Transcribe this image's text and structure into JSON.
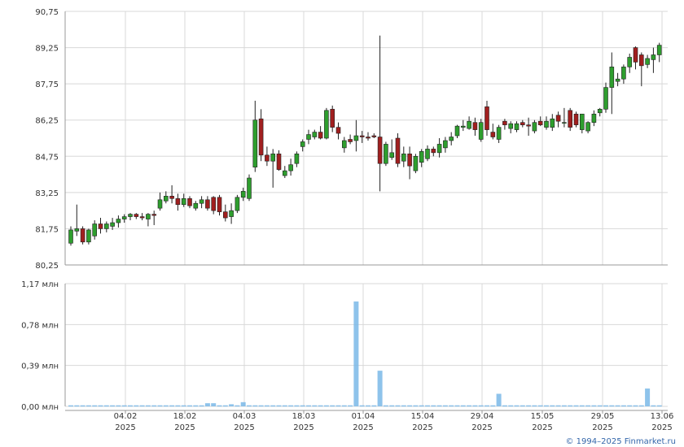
{
  "credit": "© 1994–2025 Finmarket.ru",
  "colors": {
    "up": "#2e9e2e",
    "down": "#a11f1f",
    "volume": "#7ab8e8",
    "grid": "#d8d8d8",
    "axis": "#999999"
  },
  "chart_data": [
    {
      "type": "candlestick",
      "title": "",
      "ylim": [
        80.25,
        90.75
      ],
      "y_ticks": [
        "90,75",
        "89,25",
        "87,75",
        "86,25",
        "84,75",
        "83,25",
        "81,75",
        "80,25"
      ],
      "grid": true,
      "candles": [
        [
          81.15,
          81.85,
          81.05,
          81.7
        ],
        [
          81.65,
          82.75,
          81.45,
          81.75
        ],
        [
          81.75,
          81.85,
          81.1,
          81.2
        ],
        [
          81.2,
          81.75,
          81.1,
          81.7
        ],
        [
          81.45,
          82.1,
          81.3,
          81.95
        ],
        [
          81.95,
          82.2,
          81.55,
          81.75
        ],
        [
          81.75,
          82.05,
          81.6,
          81.95
        ],
        [
          81.85,
          82.2,
          81.7,
          82.0
        ],
        [
          82.0,
          82.3,
          81.8,
          82.15
        ],
        [
          82.15,
          82.35,
          82.0,
          82.25
        ],
        [
          82.25,
          82.4,
          82.1,
          82.35
        ],
        [
          82.35,
          82.4,
          82.15,
          82.25
        ],
        [
          82.25,
          82.4,
          82.1,
          82.2
        ],
        [
          82.15,
          82.4,
          81.85,
          82.35
        ],
        [
          82.35,
          82.5,
          81.9,
          82.3
        ],
        [
          82.6,
          83.25,
          82.5,
          82.95
        ],
        [
          82.9,
          83.3,
          82.8,
          83.1
        ],
        [
          83.1,
          83.55,
          82.8,
          83.0
        ],
        [
          83.0,
          83.2,
          82.5,
          82.75
        ],
        [
          82.75,
          83.2,
          82.65,
          83.0
        ],
        [
          83.0,
          83.1,
          82.6,
          82.7
        ],
        [
          82.6,
          82.9,
          82.5,
          82.8
        ],
        [
          82.8,
          83.1,
          82.6,
          82.95
        ],
        [
          82.95,
          83.1,
          82.5,
          82.6
        ],
        [
          83.05,
          83.1,
          82.35,
          82.5
        ],
        [
          83.05,
          83.15,
          82.3,
          82.45
        ],
        [
          82.45,
          82.75,
          82.05,
          82.2
        ],
        [
          82.25,
          82.8,
          81.95,
          82.5
        ],
        [
          82.5,
          83.15,
          82.4,
          83.05
        ],
        [
          83.05,
          83.45,
          82.9,
          83.3
        ],
        [
          83.0,
          84.0,
          82.9,
          83.85
        ],
        [
          84.3,
          87.05,
          84.1,
          86.25
        ],
        [
          86.3,
          86.7,
          84.55,
          84.8
        ],
        [
          84.8,
          85.15,
          84.35,
          84.55
        ],
        [
          84.55,
          85.05,
          83.45,
          84.85
        ],
        [
          84.85,
          85.0,
          84.15,
          84.2
        ],
        [
          83.95,
          84.35,
          83.85,
          84.15
        ],
        [
          84.15,
          84.65,
          83.95,
          84.4
        ],
        [
          84.45,
          84.95,
          84.3,
          84.85
        ],
        [
          85.15,
          85.45,
          84.95,
          85.35
        ],
        [
          85.45,
          85.85,
          85.25,
          85.65
        ],
        [
          85.55,
          85.85,
          85.45,
          85.75
        ],
        [
          85.75,
          86.0,
          85.45,
          85.5
        ],
        [
          85.5,
          86.75,
          85.45,
          86.65
        ],
        [
          86.7,
          86.85,
          85.75,
          85.95
        ],
        [
          85.95,
          86.15,
          85.45,
          85.7
        ],
        [
          85.1,
          85.55,
          84.9,
          85.4
        ],
        [
          85.45,
          85.65,
          85.25,
          85.35
        ],
        [
          85.4,
          86.25,
          84.95,
          85.6
        ],
        [
          85.6,
          85.8,
          85.3,
          85.55
        ],
        [
          85.55,
          85.75,
          85.4,
          85.5
        ],
        [
          85.6,
          85.7,
          85.5,
          85.55
        ],
        [
          85.55,
          89.75,
          83.3,
          84.45
        ],
        [
          84.45,
          85.35,
          84.35,
          85.25
        ],
        [
          84.7,
          85.45,
          84.6,
          84.9
        ],
        [
          85.5,
          85.7,
          84.3,
          84.45
        ],
        [
          84.55,
          85.15,
          84.3,
          84.85
        ],
        [
          84.85,
          85.15,
          83.8,
          84.35
        ],
        [
          84.15,
          84.85,
          84.05,
          84.75
        ],
        [
          84.5,
          85.05,
          84.3,
          84.95
        ],
        [
          84.65,
          85.2,
          84.55,
          85.05
        ],
        [
          85.05,
          85.15,
          84.75,
          84.9
        ],
        [
          84.9,
          85.5,
          84.7,
          85.25
        ],
        [
          85.1,
          85.55,
          84.9,
          85.4
        ],
        [
          85.4,
          85.75,
          85.2,
          85.55
        ],
        [
          85.6,
          86.05,
          85.5,
          86.0
        ],
        [
          85.95,
          86.25,
          85.8,
          86.0
        ],
        [
          85.9,
          86.4,
          85.85,
          86.2
        ],
        [
          86.15,
          86.35,
          85.6,
          85.85
        ],
        [
          85.45,
          86.3,
          85.35,
          86.15
        ],
        [
          86.8,
          87.05,
          85.6,
          85.85
        ],
        [
          85.75,
          86.1,
          85.45,
          85.55
        ],
        [
          85.45,
          86.05,
          85.3,
          85.95
        ],
        [
          86.2,
          86.3,
          85.85,
          86.05
        ],
        [
          85.9,
          86.2,
          85.7,
          86.1
        ],
        [
          85.85,
          86.2,
          85.75,
          86.1
        ],
        [
          86.15,
          86.25,
          85.95,
          86.05
        ],
        [
          86.05,
          86.35,
          85.6,
          86.0
        ],
        [
          85.8,
          86.25,
          85.7,
          86.15
        ],
        [
          86.2,
          86.4,
          86.0,
          86.05
        ],
        [
          85.95,
          86.4,
          85.85,
          86.2
        ],
        [
          85.95,
          86.5,
          85.8,
          86.3
        ],
        [
          86.45,
          86.6,
          85.95,
          86.2
        ],
        [
          86.15,
          86.75,
          85.95,
          86.15
        ],
        [
          86.65,
          86.75,
          85.8,
          85.95
        ],
        [
          86.5,
          86.6,
          85.95,
          86.05
        ],
        [
          85.85,
          86.45,
          85.7,
          86.5
        ],
        [
          85.8,
          86.2,
          85.7,
          86.15
        ],
        [
          86.15,
          86.65,
          86.0,
          86.5
        ],
        [
          86.55,
          86.75,
          86.4,
          86.7
        ],
        [
          86.7,
          87.8,
          86.55,
          87.6
        ],
        [
          87.6,
          89.05,
          86.5,
          88.45
        ],
        [
          87.85,
          88.2,
          87.65,
          87.95
        ],
        [
          87.95,
          88.55,
          87.75,
          88.45
        ],
        [
          88.45,
          89.0,
          88.2,
          88.85
        ],
        [
          89.25,
          89.3,
          88.35,
          88.65
        ],
        [
          88.95,
          89.05,
          87.65,
          88.5
        ],
        [
          88.55,
          88.95,
          88.4,
          88.8
        ],
        [
          88.75,
          89.25,
          88.2,
          88.95
        ],
        [
          88.95,
          89.45,
          88.65,
          89.35
        ]
      ],
      "x_axis": "shared",
      "x_ticks": [
        {
          "day": "04.02",
          "year": "2025"
        },
        {
          "day": "18.02",
          "year": "2025"
        },
        {
          "day": "04.03",
          "year": "2025"
        },
        {
          "day": "18.03",
          "year": "2025"
        },
        {
          "day": "01.04",
          "year": "2025"
        },
        {
          "day": "15.04",
          "year": "2025"
        },
        {
          "day": "29.04",
          "year": "2025"
        },
        {
          "day": "15.05",
          "year": "2025"
        },
        {
          "day": "29.05",
          "year": "2025"
        },
        {
          "day": "13.06",
          "year": "2025"
        }
      ]
    },
    {
      "type": "bar",
      "title": "",
      "ylim": [
        0,
        1.17
      ],
      "y_ticks": [
        "1,17 млн",
        "0,78 млн",
        "0,39 млн",
        "0,00 млн"
      ],
      "volume_mln": [
        0.01,
        0.01,
        0.01,
        0.01,
        0.01,
        0.01,
        0.01,
        0.01,
        0.01,
        0.01,
        0.01,
        0.01,
        0.01,
        0.01,
        0.01,
        0.01,
        0.01,
        0.01,
        0.01,
        0.01,
        0.01,
        0.01,
        0.01,
        0.01,
        0.01,
        0.01,
        0.01,
        0.01,
        0.01,
        0.01,
        0.01,
        0.01,
        0.01,
        0.01,
        0.01,
        0.01,
        0.01,
        0.01,
        0.01,
        0.01,
        0.01,
        0.01,
        0.01,
        0.01,
        0.01,
        0.01,
        0.01,
        0.01,
        0.01,
        0.01,
        0.01,
        0.01,
        0.01,
        0.01,
        0.01,
        0.01,
        0.01,
        0.01,
        0.01,
        0.01,
        0.01,
        0.01,
        0.01,
        0.01,
        0.01,
        0.01,
        0.01,
        0.01,
        0.01,
        0.01,
        0.01,
        0.01,
        0.01,
        0.01,
        0.01,
        0.01,
        0.01,
        0.01,
        0.01,
        0.01,
        0.01,
        0.01,
        0.01,
        0.01,
        0.01,
        0.01,
        0.01,
        0.01,
        0.01,
        0.01,
        0.01,
        0.01,
        0.01,
        0.01,
        0.01,
        0.01,
        0.01,
        0.01,
        0.01,
        0.01
      ],
      "volume_spikes": [
        {
          "candle": 23,
          "value": 0.03
        },
        {
          "candle": 24,
          "value": 0.03
        },
        {
          "candle": 27,
          "value": 0.02
        },
        {
          "candle": 29,
          "value": 0.04
        },
        {
          "candle": 42,
          "value": 0.01
        },
        {
          "candle": 48,
          "value": 1.0
        },
        {
          "candle": 52,
          "value": 0.34
        },
        {
          "candle": 72,
          "value": 0.12
        },
        {
          "candle": 97,
          "value": 0.17
        }
      ]
    }
  ]
}
